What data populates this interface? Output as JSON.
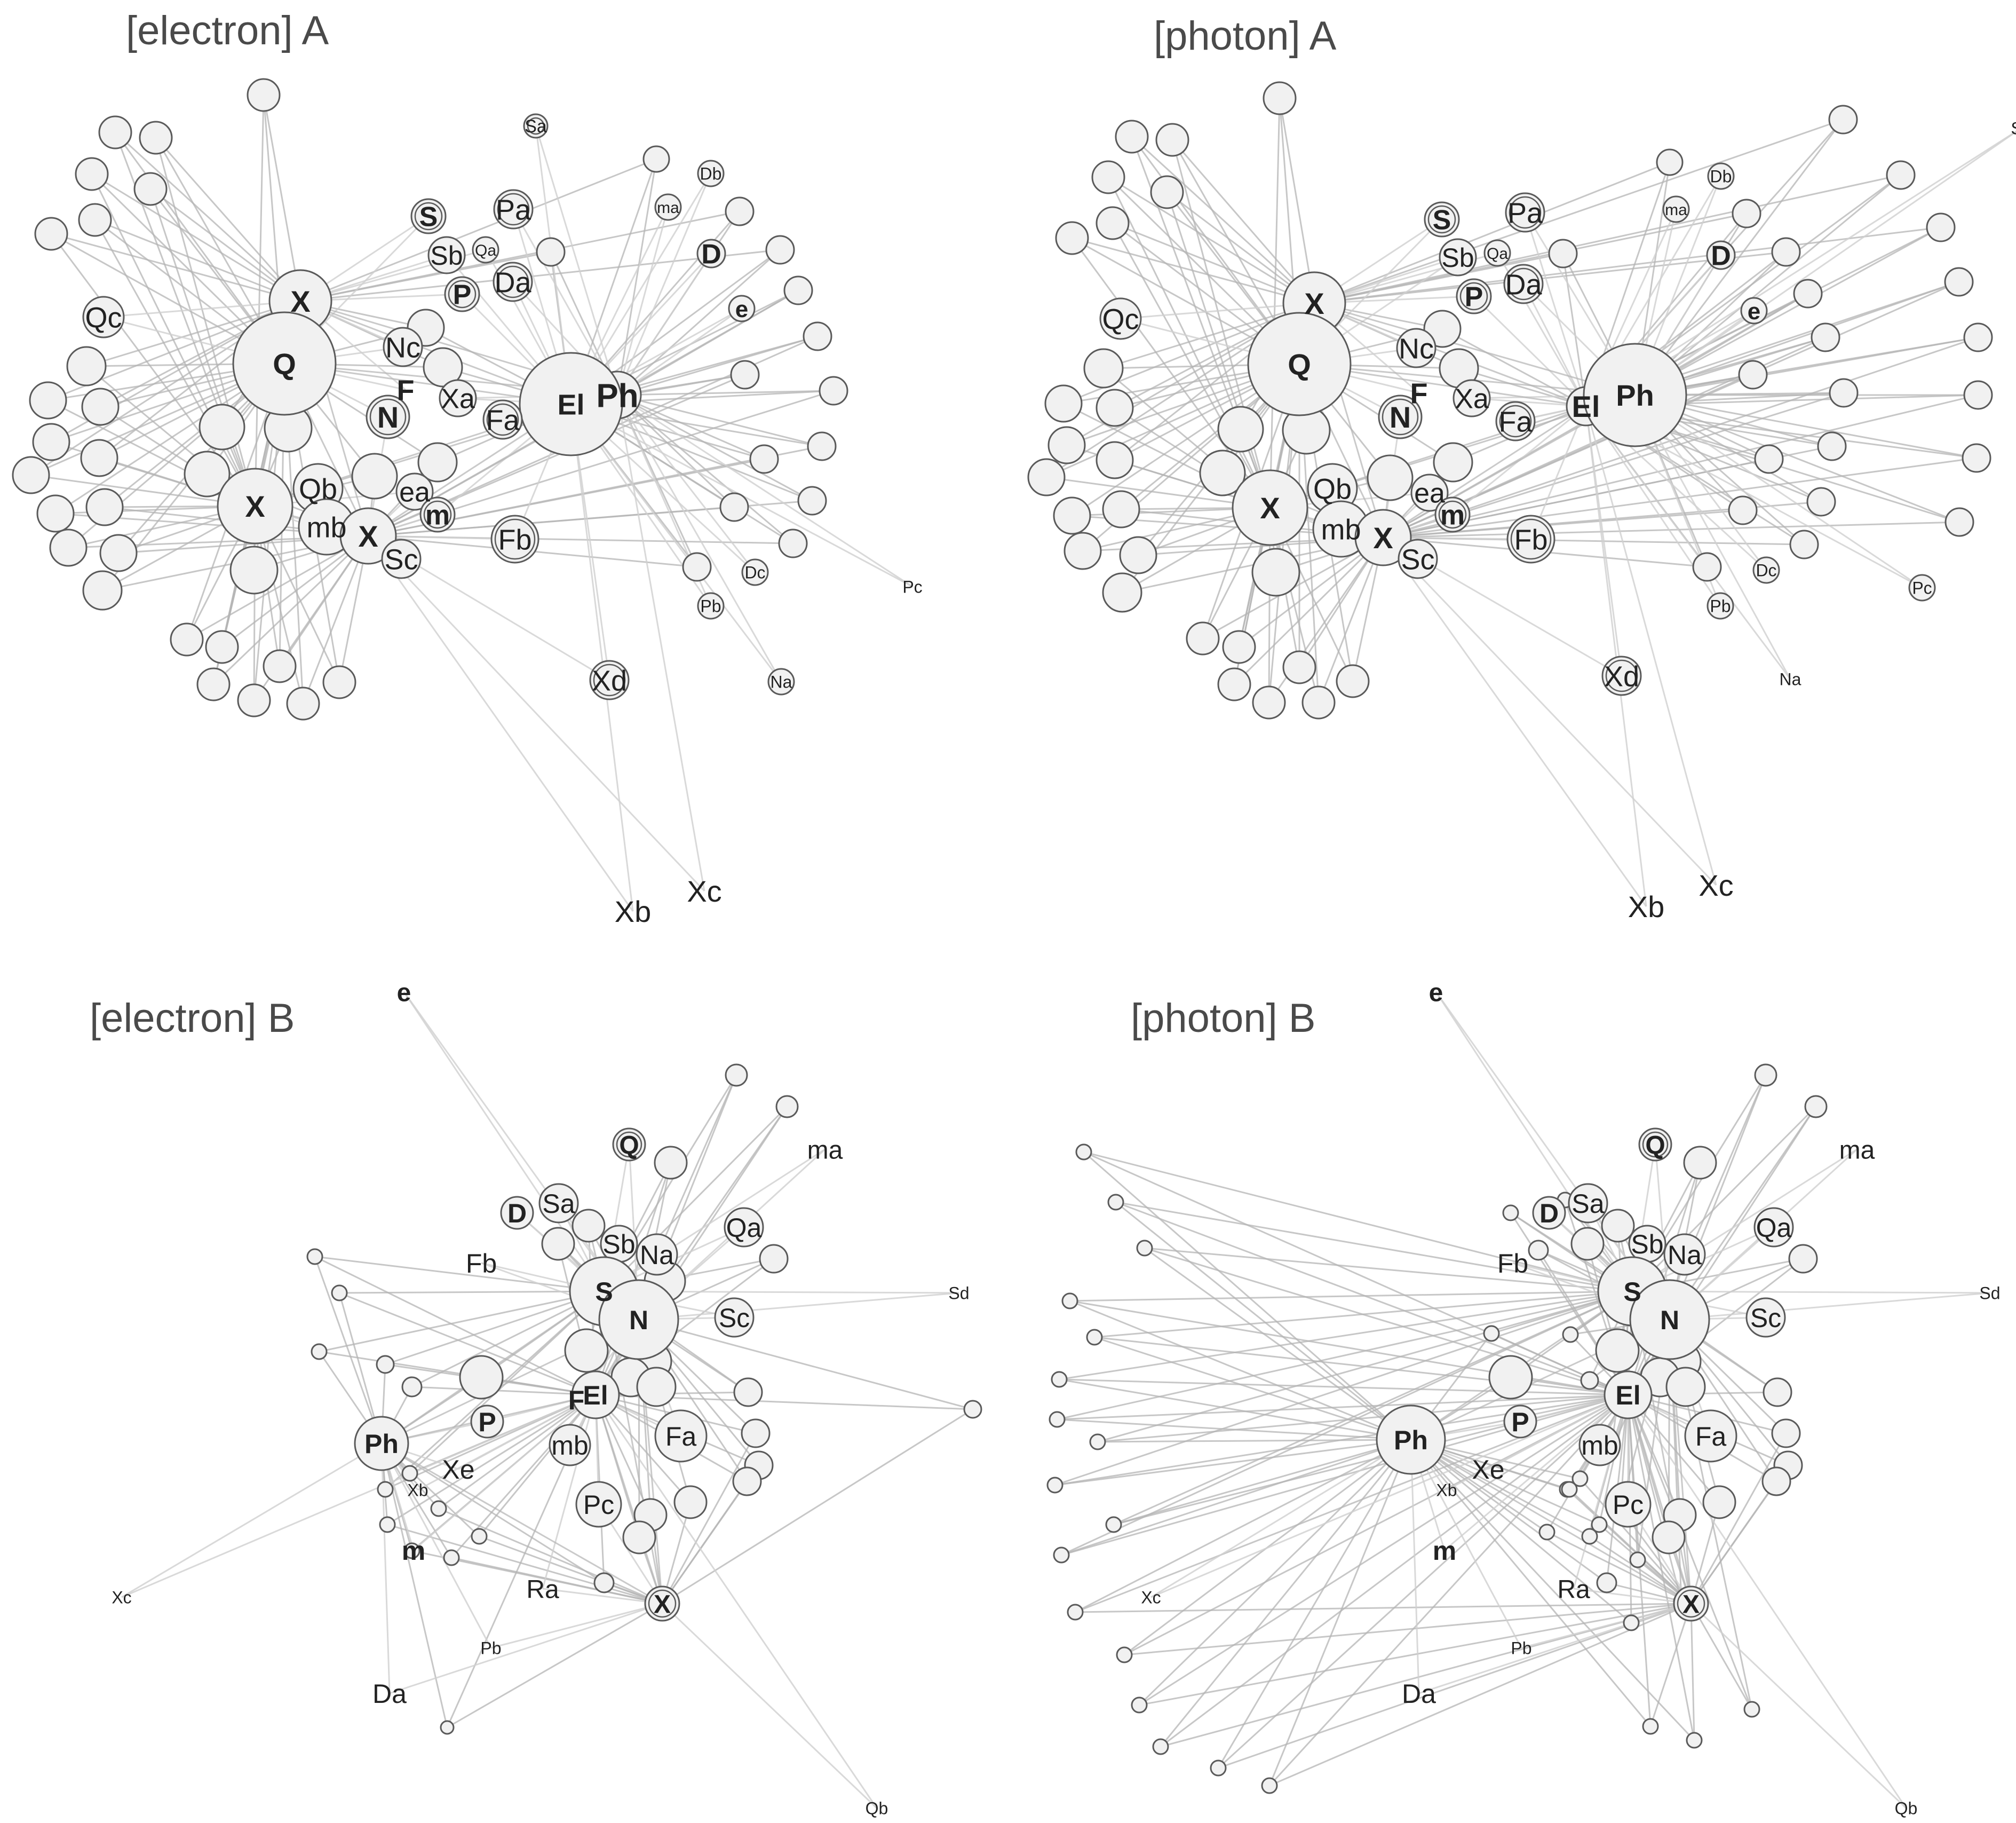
{
  "colors": {
    "edge": "#b4b4b4",
    "edge_light": "#d0d0d0",
    "node_fill": "#f1f1f1",
    "node_stroke": "#5a5a5a",
    "label": "#222222",
    "title": "#4a4a4a"
  },
  "panels": [
    {
      "id": "electron-a",
      "title": "[electron] A",
      "labels": [
        "Sa",
        "Db",
        "ma",
        "Pa",
        "S",
        "Qa",
        "Sb",
        "D",
        "Da",
        "P",
        "X",
        "e",
        "Qc",
        "Nc",
        "Q",
        "F",
        "Xa",
        "Ph",
        "El",
        "N",
        "Fa",
        "Qb",
        "ea",
        "X",
        "mb",
        "m",
        "X",
        "Sc",
        "Fb",
        "Dc",
        "Pc",
        "Pb",
        "Na",
        "Xd",
        "Xc",
        "Xb"
      ],
      "bold_labels": [
        "S",
        "D",
        "P",
        "X",
        "e",
        "Q",
        "F",
        "Ph",
        "El",
        "N",
        "m"
      ]
    },
    {
      "id": "photon-a",
      "title": "[photon] A",
      "labels": [
        "Sa",
        "Db",
        "ma",
        "Pa",
        "S",
        "Qa",
        "Sb",
        "D",
        "Da",
        "P",
        "X",
        "e",
        "Qc",
        "Nc",
        "Q",
        "F",
        "Xa",
        "El",
        "Ph",
        "N",
        "Fa",
        "Qb",
        "ea",
        "X",
        "mb",
        "m",
        "X",
        "Sc",
        "Fb",
        "Dc",
        "Pb",
        "Pc",
        "Xd",
        "Na",
        "Xc",
        "Xb"
      ],
      "bold_labels": [
        "S",
        "D",
        "P",
        "X",
        "e",
        "Q",
        "F",
        "Ph",
        "El",
        "N",
        "m"
      ]
    },
    {
      "id": "electron-b",
      "title": "[electron] B",
      "labels": [
        "e",
        "Q",
        "ma",
        "Sa",
        "D",
        "Qa",
        "Sb",
        "Na",
        "Fb",
        "S",
        "Sd",
        "Sc",
        "N",
        "El",
        "F",
        "P",
        "Ph",
        "mb",
        "Fa",
        "Xe",
        "Xb",
        "Pc",
        "m",
        "Ra",
        "X",
        "Xc",
        "Pb",
        "Da",
        "Qb"
      ],
      "bold_labels": [
        "e",
        "Q",
        "D",
        "S",
        "N",
        "El",
        "F",
        "P",
        "Ph",
        "m",
        "X"
      ]
    },
    {
      "id": "photon-b",
      "title": "[photon] B",
      "labels": [
        "e",
        "Q",
        "ma",
        "Sa",
        "D",
        "Qa",
        "Sb",
        "Na",
        "Fb",
        "S",
        "Sd",
        "Sc",
        "N",
        "El",
        "Ph",
        "P",
        "mb",
        "Fa",
        "Xe",
        "Xb",
        "Pc",
        "m",
        "Ra",
        "X",
        "Xc",
        "Pb",
        "Da",
        "Qb"
      ],
      "bold_labels": [
        "e",
        "Q",
        "D",
        "S",
        "N",
        "El",
        "Ph",
        "P",
        "m",
        "X"
      ]
    }
  ]
}
